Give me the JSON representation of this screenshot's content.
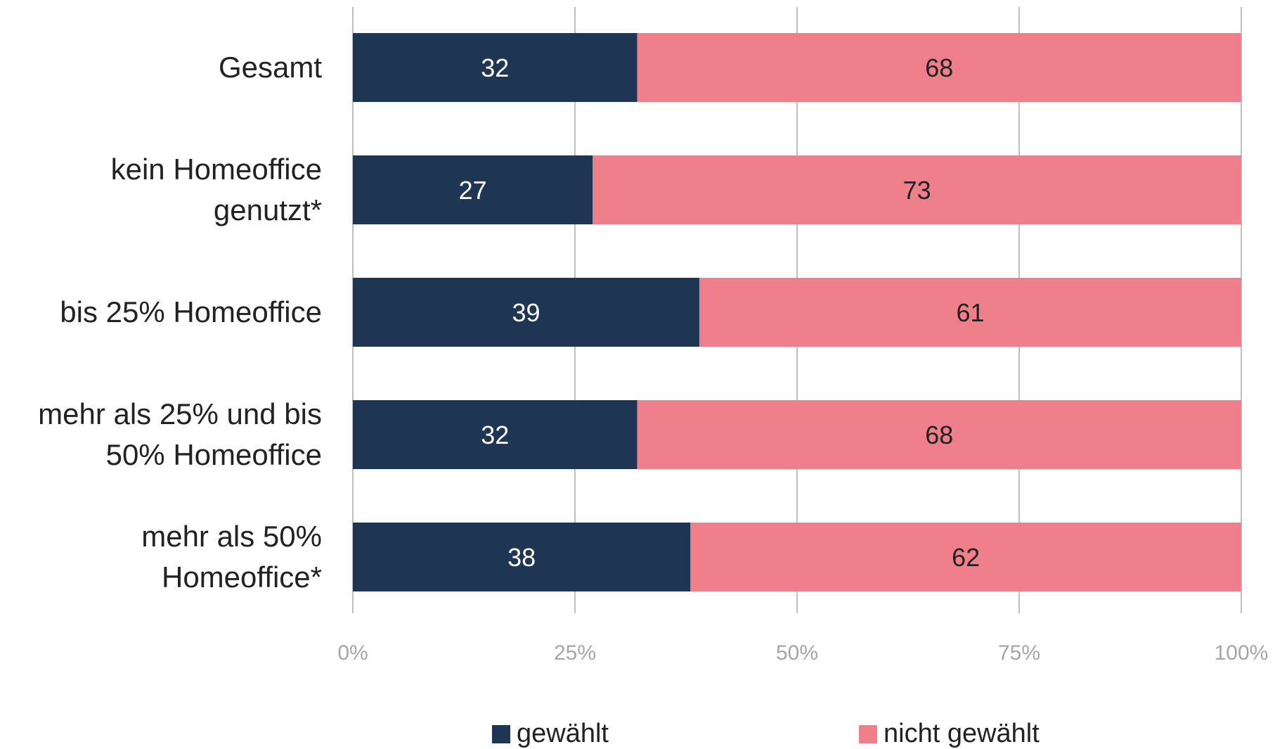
{
  "chart_data": {
    "type": "bar",
    "orientation": "horizontal",
    "stacked": true,
    "categories": [
      [
        "Gesamt"
      ],
      [
        "kein Homeoffice",
        "genutzt*"
      ],
      [
        "bis 25% Homeoffice"
      ],
      [
        "mehr als 25% und bis",
        "50% Homeoffice"
      ],
      [
        "mehr als 50%",
        "Homeoffice*"
      ]
    ],
    "series": [
      {
        "name": "gewählt",
        "color": "#1f3554",
        "values": [
          32,
          27,
          39,
          32,
          38
        ]
      },
      {
        "name": "nicht gewählt",
        "color": "#ef7f8a",
        "values": [
          68,
          73,
          61,
          68,
          62
        ]
      }
    ],
    "xlim": [
      0,
      100
    ],
    "xticks": [
      0,
      25,
      50,
      75,
      100
    ],
    "xtick_labels": [
      "0%",
      "25%",
      "50%",
      "75%",
      "100%"
    ],
    "grid": "vertical",
    "legend_position": "bottom"
  }
}
